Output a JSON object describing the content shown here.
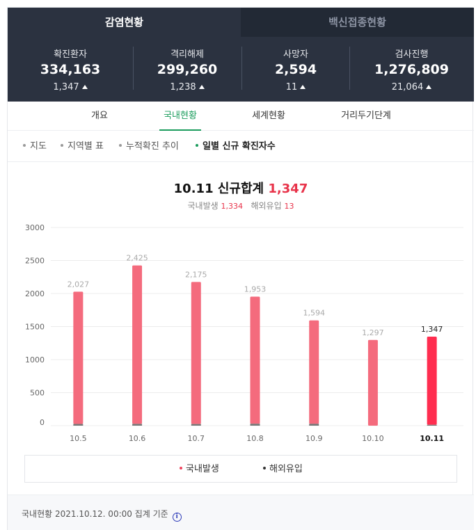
{
  "tabs": {
    "active": "감염현황",
    "inactive": "백신접종현황"
  },
  "stats": [
    {
      "label": "확진환자",
      "value": "334,163",
      "change": "1,347"
    },
    {
      "label": "격리해제",
      "value": "299,260",
      "change": "1,238"
    },
    {
      "label": "사망자",
      "value": "2,594",
      "change": "11"
    },
    {
      "label": "검사진행",
      "value": "1,276,809",
      "change": "21,064"
    }
  ],
  "subtabs": [
    "개요",
    "국내현황",
    "세계현황",
    "거리두기단계"
  ],
  "views": [
    "지도",
    "지역별 표",
    "누적확진 추이",
    "일별 신규 확진자수"
  ],
  "headline": {
    "date": "10.11",
    "label": "신규합계",
    "total": "1,347"
  },
  "subline": {
    "domestic_label": "국내발생",
    "domestic": "1,334",
    "overseas_label": "해외유입",
    "overseas": "13"
  },
  "legend": {
    "domestic": "국내발생",
    "overseas": "해외유입"
  },
  "footer": {
    "text": "국내현황 2021.10.12. 00:00 집계 기준",
    "info_icon": "i"
  },
  "colors": {
    "header_bg": "#2b3240",
    "accent_green": "#1a9c5c",
    "bar": "#f46b7d",
    "bar_highlight": "#ff2d4f",
    "overseas": "#777777"
  },
  "chart_data": {
    "type": "bar",
    "categories": [
      "10.5",
      "10.6",
      "10.7",
      "10.8",
      "10.9",
      "10.10",
      "10.11"
    ],
    "series": [
      {
        "name": "국내발생",
        "values": [
          2001,
          2398,
          2150,
          1924,
          1566,
          1297,
          1334
        ]
      },
      {
        "name": "해외유입",
        "values": [
          26,
          27,
          25,
          29,
          28,
          0,
          13
        ]
      }
    ],
    "totals": [
      2027,
      2425,
      2175,
      1953,
      1594,
      1297,
      1347
    ],
    "total_labels": [
      "2,027",
      "2,425",
      "2,175",
      "1,953",
      "1,594",
      "1,297",
      "1,347"
    ],
    "y_ticks": [
      0,
      500,
      1000,
      1500,
      2000,
      2500,
      3000
    ],
    "ylim": [
      0,
      3000
    ],
    "stacked": true,
    "highlight": "10.11",
    "grid": true,
    "legend": "bottom"
  }
}
